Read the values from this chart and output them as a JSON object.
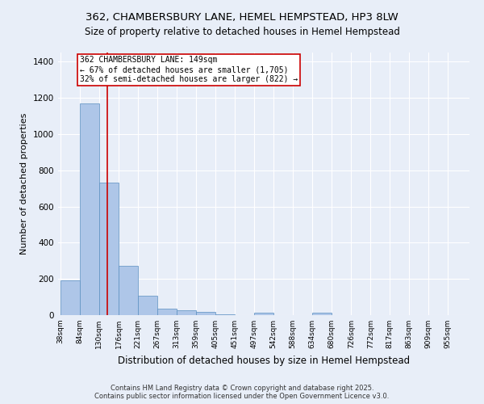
{
  "title": "362, CHAMBERSBURY LANE, HEMEL HEMPSTEAD, HP3 8LW",
  "subtitle": "Size of property relative to detached houses in Hemel Hempstead",
  "xlabel": "Distribution of detached houses by size in Hemel Hempstead",
  "ylabel": "Number of detached properties",
  "footnote": "Contains HM Land Registry data © Crown copyright and database right 2025.\nContains public sector information licensed under the Open Government Licence v3.0.",
  "bin_labels": [
    "38sqm",
    "84sqm",
    "130sqm",
    "176sqm",
    "221sqm",
    "267sqm",
    "313sqm",
    "359sqm",
    "405sqm",
    "451sqm",
    "497sqm",
    "542sqm",
    "588sqm",
    "634sqm",
    "680sqm",
    "726sqm",
    "772sqm",
    "817sqm",
    "863sqm",
    "909sqm",
    "955sqm"
  ],
  "bar_values": [
    193,
    1170,
    730,
    270,
    105,
    37,
    27,
    18,
    5,
    0,
    13,
    0,
    0,
    12,
    0,
    0,
    0,
    0,
    0,
    0
  ],
  "bar_color": "#aec6e8",
  "bar_edge_color": "#5a8fc0",
  "background_color": "#e8eef8",
  "grid_color": "#ffffff",
  "vline_x": 149,
  "vline_color": "#cc0000",
  "bin_edges": [
    38,
    84,
    130,
    176,
    221,
    267,
    313,
    359,
    405,
    451,
    497,
    542,
    588,
    634,
    680,
    726,
    772,
    817,
    863,
    909,
    955
  ],
  "annotation_text": "362 CHAMBERSBURY LANE: 149sqm\n← 67% of detached houses are smaller (1,705)\n32% of semi-detached houses are larger (822) →",
  "ylim": [
    0,
    1450
  ],
  "title_fontsize": 9.5,
  "subtitle_fontsize": 8.5,
  "ylabel_fontsize": 8,
  "xlabel_fontsize": 8.5,
  "tick_fontsize": 6.5,
  "annotation_fontsize": 7,
  "footnote_fontsize": 6,
  "figsize": [
    6.0,
    5.0
  ],
  "dpi": 100
}
